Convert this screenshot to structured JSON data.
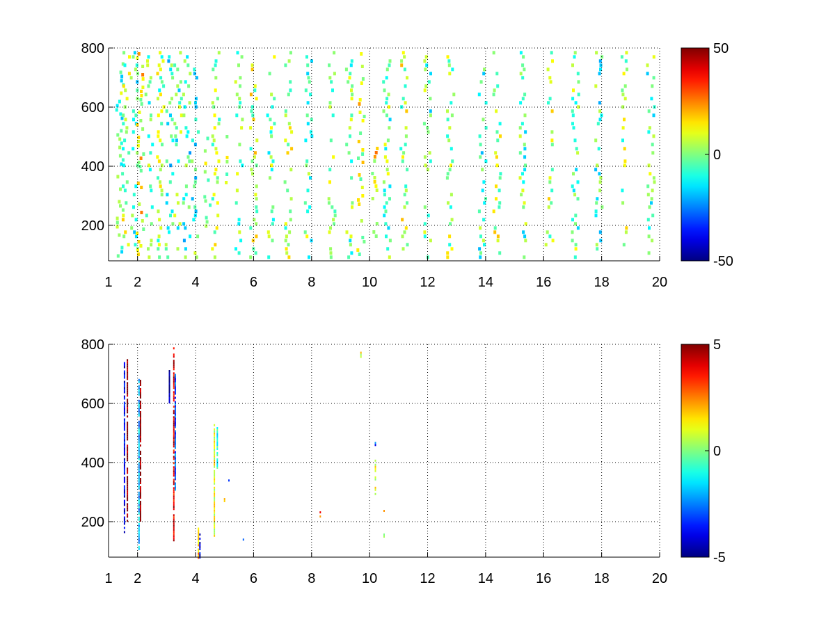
{
  "chart_data": [
    {
      "type": "heatmap",
      "title": "",
      "xlabel": "",
      "ylabel": "",
      "xlim": [
        1,
        20
      ],
      "ylim": [
        80,
        800
      ],
      "x_ticks": [
        1,
        2,
        4,
        6,
        8,
        10,
        12,
        14,
        16,
        18,
        20
      ],
      "x_tick_labels": [
        "1",
        "2",
        "4",
        "6",
        "8",
        "10",
        "12",
        "14",
        "16",
        "18",
        "20"
      ],
      "y_ticks": [
        200,
        400,
        600,
        800
      ],
      "y_tick_labels": [
        "200",
        "400",
        "600",
        "800"
      ],
      "grid": true,
      "colormap": "jet",
      "clim": [
        -50,
        50
      ],
      "colorbar_ticks": [
        50,
        0,
        -50
      ],
      "colorbar_labels": [
        "50",
        "0",
        "-50"
      ],
      "background": "#ffffff",
      "description_of_cells": "dense scattered cells, mostly cyan-green-yellow (values near 0), density decreasing with x",
      "cells": [
        {
          "x": 1.4,
          "y_from": 90,
          "y_to": 780,
          "value": -4
        },
        {
          "x": 1.6,
          "y_from": 90,
          "y_to": 790,
          "value": 3
        },
        {
          "x": 1.9,
          "y_from": 90,
          "y_to": 790,
          "value": -6
        },
        {
          "x": 2.1,
          "y_from": 90,
          "y_to": 800,
          "value": 12
        },
        {
          "x": 2.4,
          "y_from": 90,
          "y_to": 790,
          "value": -5
        },
        {
          "x": 2.8,
          "y_from": 90,
          "y_to": 790,
          "value": 2
        },
        {
          "x": 3.1,
          "y_from": 90,
          "y_to": 790,
          "value": -7
        },
        {
          "x": 3.4,
          "y_from": 90,
          "y_to": 790,
          "value": -4
        },
        {
          "x": 3.7,
          "y_from": 90,
          "y_to": 790,
          "value": -8
        },
        {
          "x": 4.0,
          "y_from": 90,
          "y_to": 790,
          "value": -6
        },
        {
          "x": 4.4,
          "y_from": 200,
          "y_to": 500,
          "value": 8
        },
        {
          "x": 4.7,
          "y_from": 90,
          "y_to": 790,
          "value": 4
        },
        {
          "x": 5.0,
          "y_from": 300,
          "y_to": 520,
          "value": 6
        },
        {
          "x": 5.5,
          "y_from": 90,
          "y_to": 790,
          "value": -3
        },
        {
          "x": 6.0,
          "y_from": 90,
          "y_to": 790,
          "value": 5
        },
        {
          "x": 6.6,
          "y_from": 90,
          "y_to": 790,
          "value": -2
        },
        {
          "x": 7.2,
          "y_from": 90,
          "y_to": 790,
          "value": 3
        },
        {
          "x": 7.9,
          "y_from": 90,
          "y_to": 790,
          "value": -2
        },
        {
          "x": 8.7,
          "y_from": 90,
          "y_to": 790,
          "value": 4
        },
        {
          "x": 9.3,
          "y_from": 90,
          "y_to": 790,
          "value": -3
        },
        {
          "x": 9.7,
          "y_from": 90,
          "y_to": 800,
          "value": 10
        },
        {
          "x": 10.2,
          "y_from": 150,
          "y_to": 480,
          "value": 14
        },
        {
          "x": 10.6,
          "y_from": 90,
          "y_to": 790,
          "value": -2
        },
        {
          "x": 11.2,
          "y_from": 90,
          "y_to": 790,
          "value": 5
        },
        {
          "x": 12.0,
          "y_from": 90,
          "y_to": 790,
          "value": -4
        },
        {
          "x": 12.8,
          "y_from": 90,
          "y_to": 790,
          "value": 3
        },
        {
          "x": 13.9,
          "y_from": 90,
          "y_to": 790,
          "value": -6
        },
        {
          "x": 14.4,
          "y_from": 90,
          "y_to": 790,
          "value": 4
        },
        {
          "x": 15.3,
          "y_from": 90,
          "y_to": 790,
          "value": -3
        },
        {
          "x": 16.2,
          "y_from": 90,
          "y_to": 790,
          "value": 5
        },
        {
          "x": 17.1,
          "y_from": 90,
          "y_to": 790,
          "value": -2
        },
        {
          "x": 17.9,
          "y_from": 90,
          "y_to": 790,
          "value": -7
        },
        {
          "x": 18.8,
          "y_from": 90,
          "y_to": 790,
          "value": 4
        },
        {
          "x": 19.7,
          "y_from": 90,
          "y_to": 790,
          "value": -3
        }
      ]
    },
    {
      "type": "heatmap",
      "title": "",
      "xlabel": "",
      "ylabel": "",
      "xlim": [
        1,
        20
      ],
      "ylim": [
        80,
        800
      ],
      "x_ticks": [
        1,
        2,
        4,
        6,
        8,
        10,
        12,
        14,
        16,
        18,
        20
      ],
      "x_tick_labels": [
        "1",
        "2",
        "4",
        "6",
        "8",
        "10",
        "12",
        "14",
        "16",
        "18",
        "20"
      ],
      "y_ticks": [
        200,
        400,
        600,
        800
      ],
      "y_tick_labels": [
        "200",
        "400",
        "600",
        "800"
      ],
      "grid": true,
      "colormap": "jet",
      "clim": [
        -5,
        5
      ],
      "colorbar_ticks": [
        5,
        0,
        -5
      ],
      "colorbar_labels": [
        "5",
        "0",
        "-5"
      ],
      "background": "#ffffff",
      "cells": [
        {
          "x": 1.55,
          "y_from": 160,
          "y_to": 740,
          "value": -4
        },
        {
          "x": 1.65,
          "y_from": 200,
          "y_to": 750,
          "value": 5
        },
        {
          "x": 2.05,
          "y_from": 110,
          "y_to": 690,
          "value": -2
        },
        {
          "x": 2.1,
          "y_from": 200,
          "y_to": 680,
          "value": 5
        },
        {
          "x": 3.1,
          "y_from": 600,
          "y_to": 720,
          "value": -5
        },
        {
          "x": 3.25,
          "y_from": 140,
          "y_to": 790,
          "value": 4
        },
        {
          "x": 3.3,
          "y_from": 300,
          "y_to": 700,
          "value": -3
        },
        {
          "x": 4.1,
          "y_from": 80,
          "y_to": 180,
          "value": 2
        },
        {
          "x": 4.15,
          "y_from": 80,
          "y_to": 160,
          "value": -4
        },
        {
          "x": 4.65,
          "y_from": 150,
          "y_to": 530,
          "value": 1
        },
        {
          "x": 4.75,
          "y_from": 380,
          "y_to": 520,
          "value": -1
        },
        {
          "x": 5.0,
          "y_from": 270,
          "y_to": 280,
          "value": 2
        },
        {
          "x": 5.15,
          "y_from": 340,
          "y_to": 350,
          "value": -4
        },
        {
          "x": 5.65,
          "y_from": 140,
          "y_to": 150,
          "value": -3
        },
        {
          "x": 8.3,
          "y_from": 220,
          "y_to": 235,
          "value": 3
        },
        {
          "x": 9.7,
          "y_from": 760,
          "y_to": 775,
          "value": 1
        },
        {
          "x": 10.2,
          "y_from": 460,
          "y_to": 470,
          "value": -3
        },
        {
          "x": 10.2,
          "y_from": 290,
          "y_to": 410,
          "value": 1
        },
        {
          "x": 10.5,
          "y_from": 230,
          "y_to": 240,
          "value": 3
        },
        {
          "x": 10.5,
          "y_from": 150,
          "y_to": 160,
          "value": 0
        }
      ]
    }
  ]
}
